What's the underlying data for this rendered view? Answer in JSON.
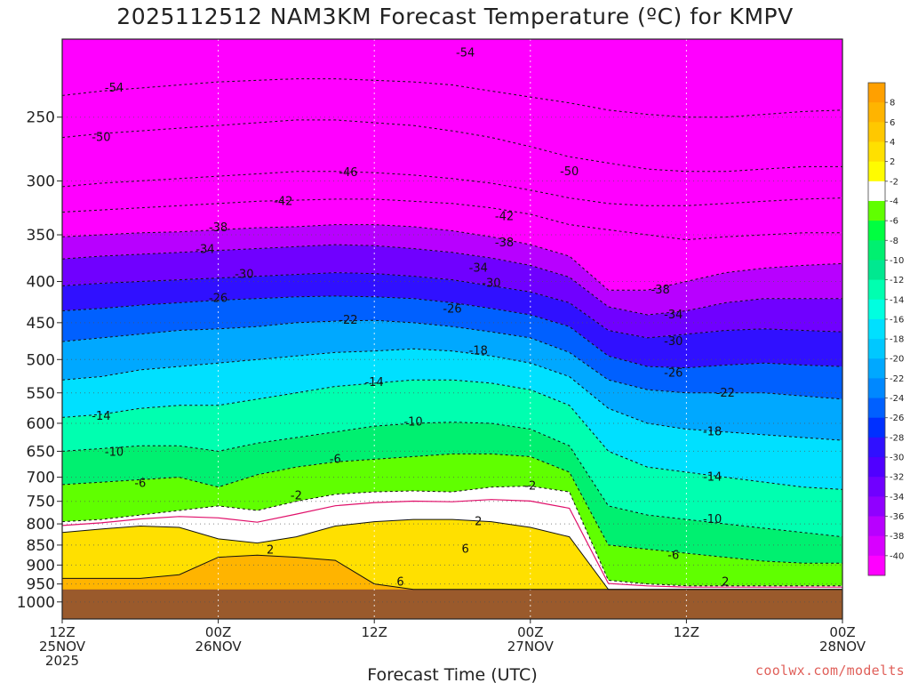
{
  "title": "2025112512 NAM3KM Forecast Temperature (ºC) for KMPV",
  "credit": "coolwx.com/modelts",
  "chart_data": {
    "type": "heatmap",
    "title": "2025112512 NAM3KM Forecast Temperature (ºC) for KMPV",
    "xlabel": "Forecast Time (UTC)",
    "ylabel": "",
    "y_scale": "log",
    "y_inverted": true,
    "ylim": [
      1050,
      200
    ],
    "xlim_hours": [
      0,
      60
    ],
    "pressure_ticks": [
      250,
      300,
      350,
      400,
      450,
      500,
      550,
      600,
      650,
      700,
      750,
      800,
      850,
      900,
      950,
      1000
    ],
    "time_ticks": [
      {
        "hour": 0,
        "l1": "12Z",
        "l2": "25NOV",
        "l3": "2025"
      },
      {
        "hour": 12,
        "l1": "00Z",
        "l2": "26NOV",
        "l3": ""
      },
      {
        "hour": 24,
        "l1": "12Z",
        "l2": "",
        "l3": ""
      },
      {
        "hour": 36,
        "l1": "00Z",
        "l2": "27NOV",
        "l3": ""
      },
      {
        "hour": 48,
        "l1": "12Z",
        "l2": "",
        "l3": ""
      },
      {
        "hour": 60,
        "l1": "00Z",
        "l2": "28NOV",
        "l3": ""
      }
    ],
    "grid": true,
    "ground_pressure": 965,
    "colorbar": {
      "placement": "right",
      "levels": [
        8,
        6,
        4,
        2,
        -2,
        -4,
        -6,
        -8,
        -10,
        -12,
        -14,
        -16,
        -18,
        -20,
        -22,
        -24,
        -26,
        -28,
        -30,
        -32,
        -34,
        -36,
        -38,
        -40
      ],
      "colors": [
        "#ffa000",
        "#ffb400",
        "#ffc800",
        "#ffe000",
        "#fffc00",
        "#ffffff",
        "#60ff00",
        "#00ff40",
        "#00f070",
        "#00e890",
        "#00ffb0",
        "#00ffe0",
        "#00e0ff",
        "#00c8ff",
        "#00a8ff",
        "#0088ff",
        "#0060ff",
        "#0030ff",
        "#3010ff",
        "#5000ff",
        "#7000ff",
        "#9000ff",
        "#b800ff",
        "#d800ff",
        "#ff00ff"
      ]
    },
    "isotherms": [
      {
        "value": 6,
        "pressure": [
          935,
          935,
          935,
          925,
          880,
          875,
          880,
          888,
          950,
          965,
          965,
          965,
          965,
          965,
          965,
          965,
          965,
          965,
          965,
          965,
          965
        ],
        "hours": [
          0,
          3,
          6,
          9,
          12,
          15,
          18,
          21,
          24,
          27,
          30,
          33,
          36,
          39,
          42,
          45,
          48,
          51,
          54,
          57,
          60
        ]
      },
      {
        "value": 2,
        "pressure": [
          820,
          812,
          805,
          808,
          835,
          845,
          830,
          805,
          795,
          790,
          790,
          795,
          808,
          830,
          965,
          965,
          965,
          965,
          965,
          965,
          965
        ],
        "hours": [
          0,
          3,
          6,
          9,
          12,
          15,
          18,
          21,
          24,
          27,
          30,
          33,
          36,
          39,
          42,
          45,
          48,
          51,
          54,
          57,
          60
        ]
      },
      {
        "value": -2,
        "pressure": [
          795,
          790,
          780,
          770,
          760,
          770,
          750,
          735,
          730,
          728,
          730,
          720,
          718,
          730,
          940,
          950,
          955,
          955,
          955,
          955,
          955
        ],
        "hours": [
          0,
          3,
          6,
          9,
          12,
          15,
          18,
          21,
          24,
          27,
          30,
          33,
          36,
          39,
          42,
          45,
          48,
          51,
          54,
          57,
          60
        ]
      },
      {
        "value": -6,
        "pressure": [
          715,
          710,
          705,
          700,
          720,
          695,
          680,
          670,
          665,
          660,
          655,
          655,
          660,
          690,
          850,
          860,
          870,
          880,
          890,
          895,
          895
        ],
        "hours": [
          0,
          3,
          6,
          9,
          12,
          15,
          18,
          21,
          24,
          27,
          30,
          33,
          36,
          39,
          42,
          45,
          48,
          51,
          54,
          57,
          60
        ]
      },
      {
        "value": -10,
        "pressure": [
          650,
          645,
          640,
          640,
          650,
          635,
          625,
          615,
          605,
          600,
          598,
          600,
          610,
          640,
          760,
          780,
          790,
          800,
          810,
          820,
          830
        ],
        "hours": [
          0,
          3,
          6,
          9,
          12,
          15,
          18,
          21,
          24,
          27,
          30,
          33,
          36,
          39,
          42,
          45,
          48,
          51,
          54,
          57,
          60
        ]
      },
      {
        "value": -14,
        "pressure": [
          590,
          585,
          575,
          570,
          570,
          560,
          550,
          540,
          535,
          530,
          530,
          535,
          545,
          570,
          650,
          680,
          690,
          700,
          710,
          720,
          725
        ],
        "hours": [
          0,
          3,
          6,
          9,
          12,
          15,
          18,
          21,
          24,
          27,
          30,
          33,
          36,
          39,
          42,
          45,
          48,
          51,
          54,
          57,
          60
        ]
      },
      {
        "value": -18,
        "pressure": [
          530,
          525,
          515,
          510,
          505,
          500,
          495,
          490,
          488,
          485,
          488,
          495,
          505,
          525,
          575,
          600,
          610,
          615,
          620,
          625,
          630
        ],
        "hours": [
          0,
          3,
          6,
          9,
          12,
          15,
          18,
          21,
          24,
          27,
          30,
          33,
          36,
          39,
          42,
          45,
          48,
          51,
          54,
          57,
          60
        ]
      },
      {
        "value": -22,
        "pressure": [
          475,
          470,
          465,
          460,
          458,
          455,
          450,
          448,
          447,
          450,
          455,
          462,
          470,
          490,
          530,
          545,
          550,
          550,
          550,
          555,
          560
        ],
        "hours": [
          0,
          3,
          6,
          9,
          12,
          15,
          18,
          21,
          24,
          27,
          30,
          33,
          36,
          39,
          42,
          45,
          48,
          51,
          54,
          57,
          60
        ]
      },
      {
        "value": -26,
        "pressure": [
          435,
          432,
          428,
          425,
          422,
          420,
          418,
          417,
          418,
          420,
          425,
          432,
          440,
          455,
          495,
          510,
          512,
          508,
          505,
          508,
          510
        ],
        "hours": [
          0,
          3,
          6,
          9,
          12,
          15,
          18,
          21,
          24,
          27,
          30,
          33,
          36,
          39,
          42,
          45,
          48,
          51,
          54,
          57,
          60
        ]
      },
      {
        "value": -30,
        "pressure": [
          405,
          402,
          400,
          398,
          396,
          394,
          392,
          390,
          391,
          394,
          398,
          405,
          412,
          425,
          460,
          470,
          465,
          460,
          458,
          460,
          462
        ],
        "hours": [
          0,
          3,
          6,
          9,
          12,
          15,
          18,
          21,
          24,
          27,
          30,
          33,
          36,
          39,
          42,
          45,
          48,
          51,
          54,
          57,
          60
        ]
      },
      {
        "value": -34,
        "pressure": [
          375,
          372,
          370,
          368,
          366,
          364,
          362,
          360,
          361,
          364,
          368,
          374,
          382,
          395,
          430,
          440,
          435,
          425,
          420,
          420,
          420
        ],
        "hours": [
          0,
          3,
          6,
          9,
          12,
          15,
          18,
          21,
          24,
          27,
          30,
          33,
          36,
          39,
          42,
          45,
          48,
          51,
          54,
          57,
          60
        ]
      },
      {
        "value": -38,
        "pressure": [
          352,
          350,
          348,
          347,
          345,
          343,
          342,
          340,
          340,
          342,
          346,
          352,
          360,
          372,
          410,
          410,
          400,
          390,
          385,
          382,
          380
        ],
        "hours": [
          0,
          3,
          6,
          9,
          12,
          15,
          18,
          21,
          24,
          27,
          30,
          33,
          36,
          39,
          42,
          45,
          48,
          51,
          54,
          57,
          60
        ]
      },
      {
        "value": -42,
        "pressure": [
          328,
          326,
          324,
          322,
          320,
          318,
          317,
          316,
          316,
          318,
          320,
          324,
          330,
          340,
          345,
          350,
          355,
          352,
          350,
          348,
          348
        ],
        "hours": [
          0,
          3,
          6,
          9,
          12,
          15,
          18,
          21,
          24,
          27,
          30,
          33,
          36,
          39,
          42,
          45,
          48,
          51,
          54,
          57,
          60
        ]
      },
      {
        "value": -46,
        "pressure": [
          305,
          302,
          300,
          298,
          296,
          294,
          292,
          292,
          293,
          295,
          298,
          302,
          308,
          315,
          320,
          322,
          322,
          320,
          318,
          316,
          315
        ],
        "hours": [
          0,
          3,
          6,
          9,
          12,
          15,
          18,
          21,
          24,
          27,
          30,
          33,
          36,
          39,
          42,
          45,
          48,
          51,
          54,
          57,
          60
        ]
      },
      {
        "value": -50,
        "pressure": [
          265,
          262,
          260,
          258,
          256,
          254,
          252,
          252,
          254,
          256,
          260,
          265,
          272,
          280,
          285,
          290,
          292,
          292,
          290,
          288,
          288
        ],
        "hours": [
          0,
          3,
          6,
          9,
          12,
          15,
          18,
          21,
          24,
          27,
          30,
          33,
          36,
          39,
          42,
          45,
          48,
          51,
          54,
          57,
          60
        ]
      },
      {
        "value": -54,
        "pressure": [
          235,
          232,
          230,
          228,
          226,
          225,
          224,
          224,
          225,
          226,
          228,
          232,
          236,
          240,
          245,
          248,
          250,
          250,
          248,
          246,
          245
        ],
        "hours": [
          0,
          3,
          6,
          9,
          12,
          15,
          18,
          21,
          24,
          27,
          30,
          33,
          36,
          39,
          42,
          45,
          48,
          51,
          54,
          57,
          60
        ]
      }
    ],
    "contour_labels": [
      {
        "text": "-54",
        "hour": 31,
        "pressure": 208
      },
      {
        "text": "-54",
        "hour": 4,
        "pressure": 230
      },
      {
        "text": "-50",
        "hour": 3,
        "pressure": 265
      },
      {
        "text": "-50",
        "hour": 39,
        "pressure": 292
      },
      {
        "text": "-46",
        "hour": 22,
        "pressure": 293
      },
      {
        "text": "-42",
        "hour": 17,
        "pressure": 318
      },
      {
        "text": "-42",
        "hour": 34,
        "pressure": 332
      },
      {
        "text": "-38",
        "hour": 12,
        "pressure": 343
      },
      {
        "text": "-38",
        "hour": 34,
        "pressure": 358
      },
      {
        "text": "-38",
        "hour": 46,
        "pressure": 410
      },
      {
        "text": "-34",
        "hour": 11,
        "pressure": 365
      },
      {
        "text": "-34",
        "hour": 32,
        "pressure": 385
      },
      {
        "text": "-34",
        "hour": 47,
        "pressure": 440
      },
      {
        "text": "-30",
        "hour": 14,
        "pressure": 392
      },
      {
        "text": "-30",
        "hour": 33,
        "pressure": 402
      },
      {
        "text": "-30",
        "hour": 47,
        "pressure": 475
      },
      {
        "text": "-26",
        "hour": 12,
        "pressure": 420
      },
      {
        "text": "-26",
        "hour": 30,
        "pressure": 433
      },
      {
        "text": "-26",
        "hour": 47,
        "pressure": 520
      },
      {
        "text": "-22",
        "hour": 22,
        "pressure": 447
      },
      {
        "text": "-22",
        "hour": 51,
        "pressure": 550
      },
      {
        "text": "-18",
        "hour": 32,
        "pressure": 488
      },
      {
        "text": "-18",
        "hour": 50,
        "pressure": 615
      },
      {
        "text": "-14",
        "hour": 3,
        "pressure": 588
      },
      {
        "text": "-14",
        "hour": 24,
        "pressure": 534
      },
      {
        "text": "-14",
        "hour": 50,
        "pressure": 700
      },
      {
        "text": "-10",
        "hour": 4,
        "pressure": 652
      },
      {
        "text": "-10",
        "hour": 27,
        "pressure": 598
      },
      {
        "text": "-10",
        "hour": 50,
        "pressure": 790
      },
      {
        "text": "-6",
        "hour": 6,
        "pressure": 712
      },
      {
        "text": "-6",
        "hour": 21,
        "pressure": 665
      },
      {
        "text": "-6",
        "hour": 47,
        "pressure": 875
      },
      {
        "text": "-2",
        "hour": 36,
        "pressure": 718
      },
      {
        "text": "-2",
        "hour": 18,
        "pressure": 738
      },
      {
        "text": "2",
        "hour": 51,
        "pressure": 945
      },
      {
        "text": "2",
        "hour": 16,
        "pressure": 862
      },
      {
        "text": "2",
        "hour": 32,
        "pressure": 795
      },
      {
        "text": "6",
        "hour": 31,
        "pressure": 860
      },
      {
        "text": "6",
        "hour": 26,
        "pressure": 945
      }
    ]
  }
}
